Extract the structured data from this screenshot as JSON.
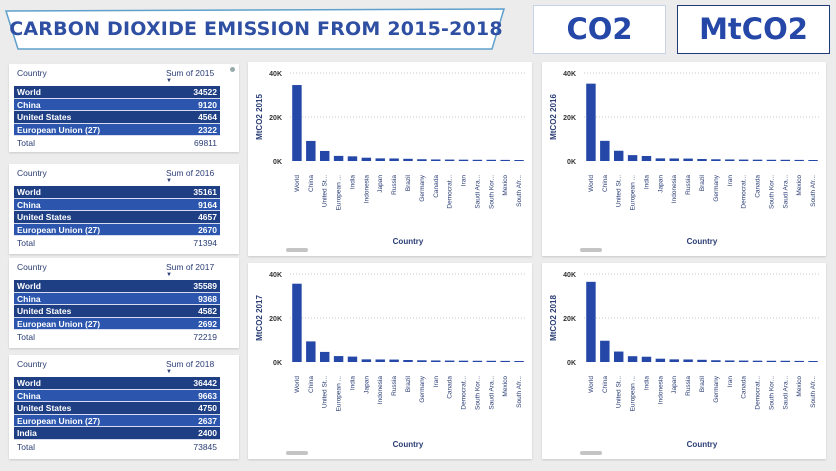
{
  "header": {
    "title": "CARBON DIOXIDE EMISSION FROM 2015-2018"
  },
  "cards": {
    "co2": "CO2",
    "mtco2": "MtCO2"
  },
  "colors": {
    "bar": "#2447a8",
    "row_dark": "#1f3f85",
    "row_light": "#2c56ad",
    "accent": "#2f4fa3"
  },
  "tables": [
    {
      "col1": "Country",
      "col2": "Sum of 2015",
      "rows": [
        {
          "name": "World",
          "value": "34522"
        },
        {
          "name": "China",
          "value": "9120"
        },
        {
          "name": "United States",
          "value": "4564"
        },
        {
          "name": "European Union (27)",
          "value": "2322"
        }
      ],
      "total_label": "Total",
      "total": "69811"
    },
    {
      "col1": "Country",
      "col2": "Sum of 2016",
      "rows": [
        {
          "name": "World",
          "value": "35161"
        },
        {
          "name": "China",
          "value": "9164"
        },
        {
          "name": "United States",
          "value": "4657"
        },
        {
          "name": "European Union (27)",
          "value": "2670"
        }
      ],
      "total_label": "Total",
      "total": "71394"
    },
    {
      "col1": "Country",
      "col2": "Sum of 2017",
      "rows": [
        {
          "name": "World",
          "value": "35589"
        },
        {
          "name": "China",
          "value": "9368"
        },
        {
          "name": "United States",
          "value": "4582"
        },
        {
          "name": "European Union (27)",
          "value": "2692"
        }
      ],
      "total_label": "Total",
      "total": "72219"
    },
    {
      "col1": "Country",
      "col2": "Sum of 2018",
      "rows": [
        {
          "name": "World",
          "value": "36442"
        },
        {
          "name": "China",
          "value": "9663"
        },
        {
          "name": "United States",
          "value": "4750"
        },
        {
          "name": "European Union (27)",
          "value": "2637"
        },
        {
          "name": "India",
          "value": "2400"
        }
      ],
      "total_label": "Total",
      "total": "73845"
    }
  ],
  "chart_data": [
    {
      "type": "bar",
      "xlabel": "Country",
      "ylabel": "MtCO2 2015",
      "ylim": [
        0,
        40000
      ],
      "yticks": [
        "0K",
        "20K",
        "40K"
      ],
      "categories": [
        "World",
        "China",
        "United St...",
        "European ...",
        "India",
        "Indonesia",
        "Japan",
        "Russia",
        "Brazil",
        "Germany",
        "Canada",
        "Democrat...",
        "Iran",
        "Saudi Ara...",
        "South Kor...",
        "Mexico",
        "South Afr..."
      ],
      "values": [
        34522,
        9120,
        4564,
        2322,
        2120,
        1500,
        1200,
        1150,
        1000,
        800,
        700,
        650,
        600,
        550,
        550,
        500,
        450
      ]
    },
    {
      "type": "bar",
      "xlabel": "Country",
      "ylabel": "MtCO2 2016",
      "ylim": [
        0,
        40000
      ],
      "yticks": [
        "0K",
        "20K",
        "40K"
      ],
      "categories": [
        "World",
        "China",
        "United St...",
        "European ...",
        "India",
        "Japan",
        "Indonesia",
        "Russia",
        "Brazil",
        "Germany",
        "Iran",
        "Democrat...",
        "Canada",
        "South Kor...",
        "Saudi Ara...",
        "Mexico",
        "South Afr..."
      ],
      "values": [
        35161,
        9164,
        4657,
        2670,
        2280,
        1200,
        1150,
        1100,
        900,
        780,
        700,
        650,
        600,
        560,
        550,
        500,
        450
      ]
    },
    {
      "type": "bar",
      "xlabel": "Country",
      "ylabel": "MtCO2 2017",
      "ylim": [
        0,
        40000
      ],
      "yticks": [
        "0K",
        "20K",
        "40K"
      ],
      "categories": [
        "World",
        "China",
        "United St...",
        "European ...",
        "India",
        "Japan",
        "Indonesia",
        "Russia",
        "Brazil",
        "Germany",
        "Iran",
        "Canada",
        "Democrat...",
        "South Kor...",
        "Saudi Ara...",
        "Mexico",
        "South Afr..."
      ],
      "values": [
        35589,
        9368,
        4582,
        2692,
        2450,
        1200,
        1150,
        1100,
        900,
        780,
        700,
        650,
        600,
        560,
        550,
        500,
        450
      ]
    },
    {
      "type": "bar",
      "xlabel": "Country",
      "ylabel": "MtCO2 2018",
      "ylim": [
        0,
        40000
      ],
      "yticks": [
        "0K",
        "20K",
        "40K"
      ],
      "categories": [
        "World",
        "China",
        "United St...",
        "European ...",
        "India",
        "Indonesia",
        "Japan",
        "Russia",
        "Brazil",
        "Germany",
        "Iran",
        "Canada",
        "Democrat...",
        "South Kor...",
        "Saudi Ara...",
        "Mexico",
        "South Afr..."
      ],
      "values": [
        36442,
        9663,
        4750,
        2637,
        2400,
        1500,
        1200,
        1150,
        1000,
        800,
        700,
        650,
        600,
        560,
        550,
        500,
        450
      ]
    }
  ]
}
